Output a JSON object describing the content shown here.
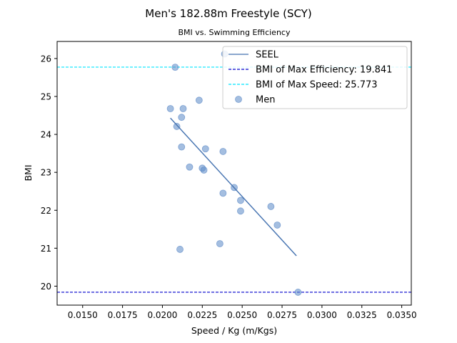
{
  "chart_data": {
    "type": "scatter",
    "title": "Men's 182.88m Freestyle (SCY)",
    "subtitle": "BMI vs. Swimming Efficiency",
    "xlabel": "Speed / Kg (m/Kgs)",
    "ylabel": "BMI",
    "xlim": [
      0.0134,
      0.0356
    ],
    "ylim": [
      19.5,
      26.45
    ],
    "xticks": [
      0.015,
      0.0175,
      0.02,
      0.0225,
      0.025,
      0.0275,
      0.03,
      0.0325,
      0.035
    ],
    "xtick_labels": [
      "0.0150",
      "0.0175",
      "0.0200",
      "0.0225",
      "0.0250",
      "0.0275",
      "0.0300",
      "0.0325",
      "0.0350"
    ],
    "yticks": [
      20,
      21,
      22,
      23,
      24,
      25,
      26
    ],
    "ytick_labels": [
      "20",
      "21",
      "22",
      "23",
      "24",
      "25",
      "26"
    ],
    "grid": false,
    "legend_position": "top-right",
    "colors": {
      "points": "#5a88c6",
      "seel": "#4472b0",
      "max_efficiency": "#0000cc",
      "max_speed": "#00e5ff"
    },
    "series": [
      {
        "name": "Men",
        "kind": "scatter",
        "points": [
          [
            0.0208,
            25.77
          ],
          [
            0.0239,
            26.12
          ],
          [
            0.0205,
            24.68
          ],
          [
            0.0213,
            24.68
          ],
          [
            0.0223,
            24.9
          ],
          [
            0.0212,
            24.45
          ],
          [
            0.0209,
            24.21
          ],
          [
            0.0212,
            23.67
          ],
          [
            0.0227,
            23.62
          ],
          [
            0.0238,
            23.55
          ],
          [
            0.0217,
            23.14
          ],
          [
            0.0225,
            23.11
          ],
          [
            0.0226,
            23.06
          ],
          [
            0.0245,
            22.6
          ],
          [
            0.0238,
            22.45
          ],
          [
            0.0249,
            22.26
          ],
          [
            0.0249,
            21.98
          ],
          [
            0.0268,
            22.1
          ],
          [
            0.0272,
            21.61
          ],
          [
            0.0211,
            20.97
          ],
          [
            0.0236,
            21.12
          ],
          [
            0.0285,
            19.84
          ]
        ]
      },
      {
        "name": "SEEL",
        "kind": "line",
        "points": [
          [
            0.0205,
            24.43
          ],
          [
            0.0284,
            20.8
          ]
        ]
      },
      {
        "name": "BMI of Max Efficiency: 19.841",
        "kind": "hline",
        "y": 19.841
      },
      {
        "name": "BMI of Max Speed: 25.773",
        "kind": "hline",
        "y": 25.773
      }
    ]
  }
}
